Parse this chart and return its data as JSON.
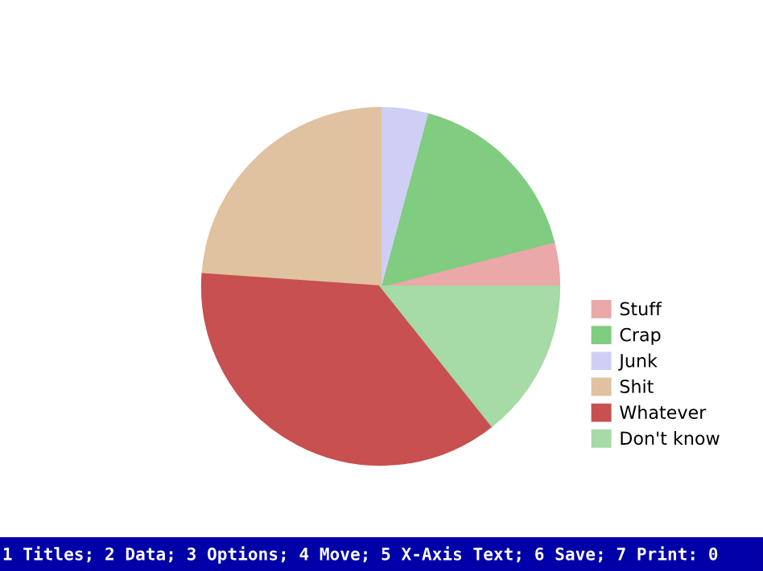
{
  "chart_data": {
    "type": "pie",
    "categories": [
      "Stuff",
      "Crap",
      "Junk",
      "Shit",
      "Whatever",
      "Don't know"
    ],
    "values": [
      4.0,
      16.8,
      4.2,
      23.9,
      36.8,
      14.3
    ],
    "colors": [
      "#eaa8a8",
      "#80cc80",
      "#cfcff6",
      "#e0c2a0",
      "#c85050",
      "#a6daa6"
    ],
    "legend": "right",
    "annotations": [
      "1 Titles; 2 Data; 3 Options; 4 Move; 5 X-Axis Text; 6 Save; 7 Print: 0"
    ]
  }
}
